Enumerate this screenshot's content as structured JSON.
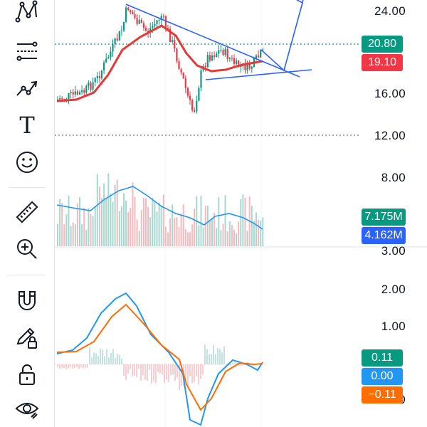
{
  "toolbar": {
    "tools": [
      {
        "name": "pattern-tool",
        "icon": "pattern-icon"
      },
      {
        "name": "fib-retracement-tool",
        "icon": "fib-icon"
      },
      {
        "name": "forecast-tool",
        "icon": "forecast-icon"
      },
      {
        "name": "text-tool",
        "icon": "text-icon"
      },
      {
        "name": "emoji-tool",
        "icon": "smiley-icon"
      },
      {
        "name": "ruler-tool",
        "icon": "ruler-icon"
      },
      {
        "name": "zoom-in-tool",
        "icon": "zoom-in-icon"
      },
      {
        "name": "magnet-tool",
        "icon": "magnet-icon"
      },
      {
        "name": "lock-drawings-tool",
        "icon": "pencil-lock-icon"
      },
      {
        "name": "lock-all-tool",
        "icon": "unlock-icon"
      },
      {
        "name": "hide-drawings-tool",
        "icon": "eye-icon"
      }
    ],
    "text_tool_glyph": "T"
  },
  "price_axis": {
    "labels": [
      "24.00",
      "16.00",
      "12.00",
      "8.00",
      "3.00",
      "2.00",
      "1.00",
      "1.00"
    ]
  },
  "badges": {
    "last_price": {
      "text": "20.80",
      "color": "#089981"
    },
    "ma_value": {
      "text": "19.10",
      "color": "#f23645"
    },
    "volume": {
      "text": "7.175M",
      "color": "#089981"
    },
    "volume_ma": {
      "text": "4.162M",
      "color": "#2962ff"
    },
    "histogram": {
      "text": "0.11",
      "color": "#089981"
    },
    "macd": {
      "text": "0.00",
      "color": "#2196f3"
    },
    "signal": {
      "text": "−0.11",
      "color": "#ff6d00"
    }
  },
  "colors": {
    "up": "#089981",
    "down": "#f23645",
    "ma": "#e53935",
    "trendline": "#2962ff",
    "volume_ma": "#2196f3",
    "macd": "#2196f3",
    "signal": "#ff6d00"
  }
}
